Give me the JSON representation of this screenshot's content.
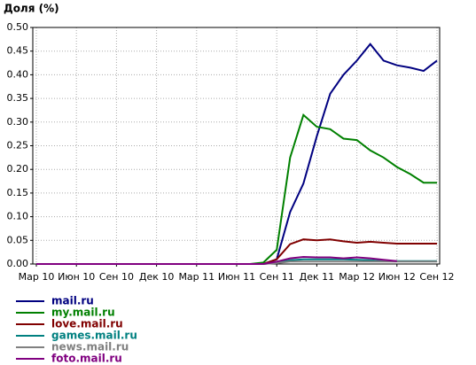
{
  "chart_data": {
    "type": "line",
    "title": "Доля (%)",
    "categories": [
      "Мар 10",
      null,
      null,
      "Июн 10",
      null,
      null,
      "Сен 10",
      null,
      null,
      "Дек 10",
      null,
      null,
      "Мар 11",
      null,
      null,
      "Июн 11",
      null,
      null,
      "Сен 11",
      null,
      null,
      "Дек 11",
      null,
      null,
      "Мар 12",
      null,
      null,
      "Июн 12",
      null,
      null,
      "Сен 12"
    ],
    "ylim": [
      0,
      0.5
    ],
    "yticks": [
      {
        "value": 0,
        "label": "0.00"
      },
      0.05,
      {
        "value": 0.1,
        "label": "0.10"
      },
      0.15,
      {
        "value": 0.2,
        "label": "0.20"
      },
      0.25,
      {
        "value": 0.3,
        "label": "0.30"
      },
      0.35,
      {
        "value": 0.4,
        "label": "0.40"
      },
      0.45,
      {
        "value": 0.5,
        "label": "0.50"
      }
    ],
    "grid": true,
    "legend": "bottom-left",
    "series": [
      {
        "name": "mail.ru",
        "color": "#000080",
        "values": [
          0,
          0,
          0,
          0,
          0,
          0,
          0,
          0,
          0,
          0,
          0,
          0,
          0,
          0,
          0,
          0,
          0,
          0,
          0.01,
          0.11,
          0.17,
          0.27,
          0.36,
          0.4,
          0.43,
          0.465,
          0.43,
          0.42,
          0.415,
          0.408,
          0.43
        ]
      },
      {
        "name": "my.mail.ru",
        "color": "#008000",
        "values": [
          0,
          0,
          0,
          0,
          0,
          0,
          0,
          0,
          0,
          0,
          0,
          0,
          0,
          0,
          0,
          0,
          0,
          0.003,
          0.03,
          0.225,
          0.315,
          0.29,
          0.285,
          0.265,
          0.262,
          0.24,
          0.225,
          0.205,
          0.19,
          0.172,
          0.172
        ]
      },
      {
        "name": "love.mail.ru",
        "color": "#800000",
        "values": [
          0,
          0,
          0,
          0,
          0,
          0,
          0,
          0,
          0,
          0,
          0,
          0,
          0,
          0,
          0,
          0,
          0,
          0,
          0.01,
          0.042,
          0.052,
          0.05,
          0.052,
          0.048,
          0.045,
          0.047,
          0.045,
          0.043,
          0.043,
          0.043,
          0.043
        ]
      },
      {
        "name": "games.mail.ru",
        "color": "#008080",
        "values": [
          0,
          0,
          0,
          0,
          0,
          0,
          0,
          0,
          0,
          0,
          0,
          0,
          0,
          0,
          0,
          0,
          0,
          0,
          0.003,
          0.008,
          0.01,
          0.01,
          0.01,
          0.01,
          0.009,
          0.008,
          0.006,
          0.006,
          0.006,
          0.006,
          0.006
        ]
      },
      {
        "name": "news.mail.ru",
        "color": "#808080",
        "values": [
          0,
          0,
          0,
          0,
          0,
          0,
          0,
          0,
          0,
          0,
          0,
          0,
          0,
          0,
          0,
          0,
          0,
          0,
          0.002,
          0.005,
          0.005,
          0.005,
          0.005,
          0.005,
          0.005,
          0.005,
          0.005,
          0.005,
          0.005,
          0.005,
          0.005
        ]
      },
      {
        "name": "foto.mail.ru",
        "color": "#800080",
        "values": [
          0,
          0,
          0,
          0,
          0,
          0,
          0,
          0,
          0,
          0,
          0,
          0,
          0,
          0,
          0,
          0,
          0,
          0,
          0.005,
          0.012,
          0.015,
          0.014,
          0.014,
          0.012,
          0.014,
          0.012,
          0.009,
          0.006,
          null,
          null,
          null
        ]
      }
    ]
  }
}
